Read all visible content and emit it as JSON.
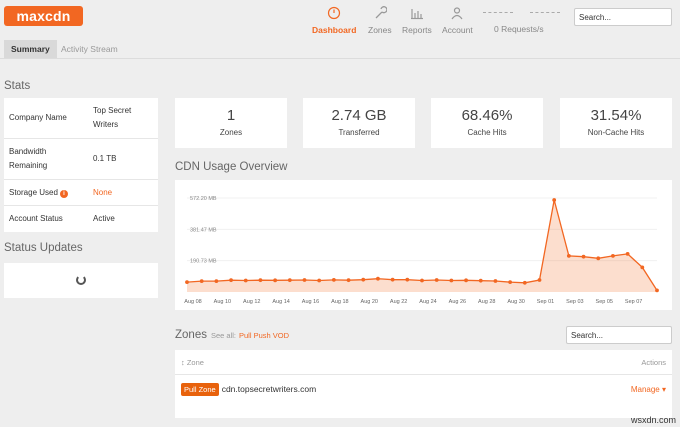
{
  "header": {
    "logo": "maxcdn",
    "nav": [
      {
        "label": "Dashboard",
        "icon": "dashboard-icon",
        "active": true
      },
      {
        "label": "Zones",
        "icon": "wrench-icon"
      },
      {
        "label": "Reports",
        "icon": "bar-chart-icon"
      },
      {
        "label": "Account",
        "icon": "user-icon"
      }
    ],
    "requests": "0 Requests/s",
    "search_placeholder": "Search..."
  },
  "tabs": [
    "Summary",
    "Activity Stream"
  ],
  "stats": {
    "title": "Stats",
    "rows": [
      {
        "key": "Company Name",
        "value": "Top Secret Writers"
      },
      {
        "key": "Bandwidth Remaining",
        "value": "0.1 TB"
      },
      {
        "key": "Storage Used",
        "value": "None",
        "info_icon": "i"
      },
      {
        "key": "Account Status",
        "value": "Active"
      }
    ]
  },
  "status_updates": {
    "title": "Status Updates"
  },
  "metrics": [
    {
      "value": "1",
      "label": "Zones"
    },
    {
      "value": "2.74 GB",
      "label": "Transferred"
    },
    {
      "value": "68.46%",
      "label": "Cache Hits"
    },
    {
      "value": "31.54%",
      "label": "Non-Cache Hits"
    }
  ],
  "chart_data": {
    "type": "area",
    "title": "CDN Usage Overview",
    "y_ticks": [
      "572.20 MB",
      "381.47 MB",
      "190.73 MB"
    ],
    "x_labels": [
      "Aug 08",
      "Aug 10",
      "Aug 12",
      "Aug 14",
      "Aug 16",
      "Aug 18",
      "Aug 20",
      "Aug 22",
      "Aug 24",
      "Aug 26",
      "Aug 28",
      "Aug 30",
      "Sep 01",
      "Sep 03",
      "Sep 05",
      "Sep 07"
    ],
    "x_label_index": [
      0,
      2,
      4,
      6,
      8,
      10,
      12,
      14,
      16,
      18,
      20,
      22,
      24,
      26,
      28,
      30
    ],
    "ylim": [
      0,
      572.2
    ],
    "unit": "MB",
    "series": [
      {
        "values": [
          60,
          66,
          66,
          72,
          70,
          72,
          71,
          72,
          73,
          70,
          74,
          72,
          75,
          81,
          75,
          75,
          70,
          73,
          70,
          71,
          69,
          67,
          60,
          56,
          73,
          560,
          220,
          215,
          205,
          220,
          232,
          150,
          10
        ]
      }
    ],
    "color": "#f26722"
  },
  "zones": {
    "title": "Zones",
    "see_all": "See all:",
    "links": "Pull Push VOD",
    "search_placeholder": "Search...",
    "col_zone": "Zone",
    "col_actions": "Actions",
    "rows": [
      {
        "tag": "Pull Zone",
        "name": "cdn.topsecretwriters.com",
        "action": "Manage ▾"
      }
    ]
  },
  "watermark": "wsxdn.com"
}
